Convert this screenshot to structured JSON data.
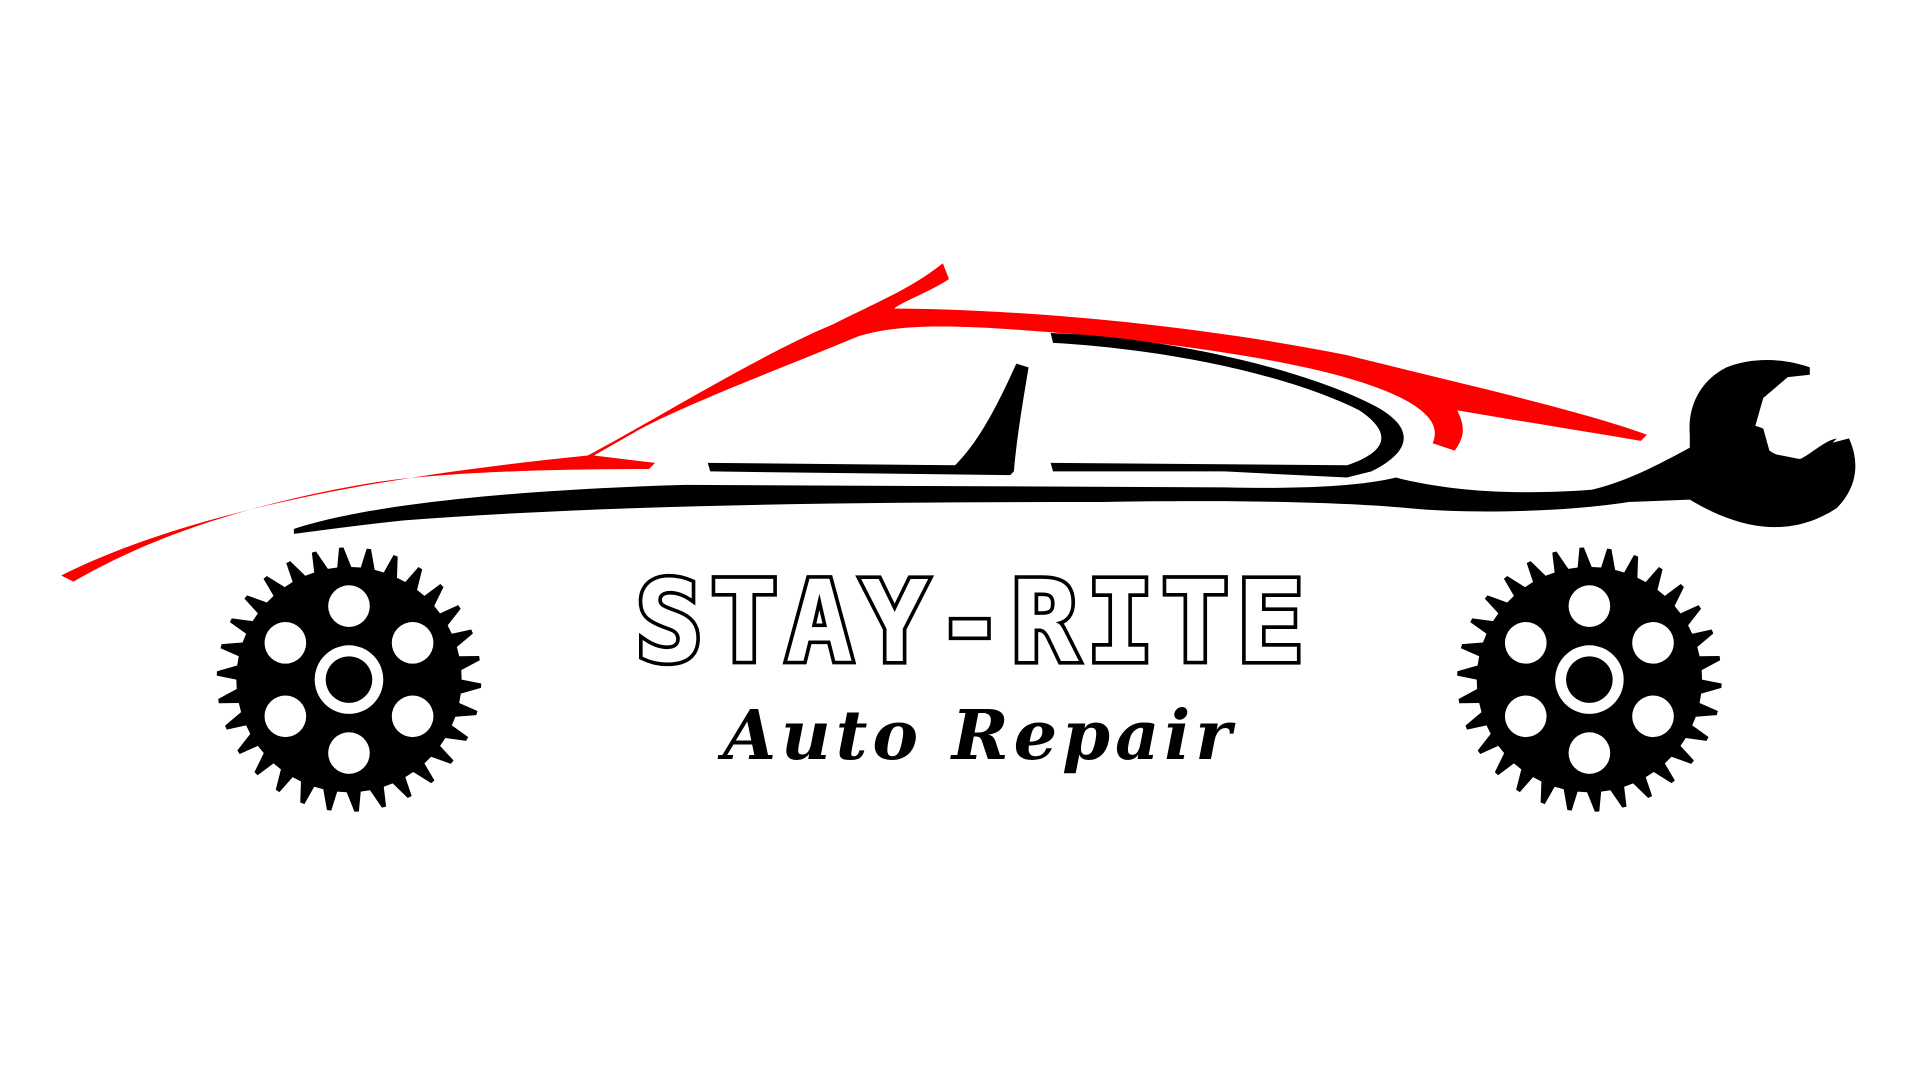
{
  "logo": {
    "name": "STAY-RITE",
    "tagline": "Auto Repair"
  }
}
